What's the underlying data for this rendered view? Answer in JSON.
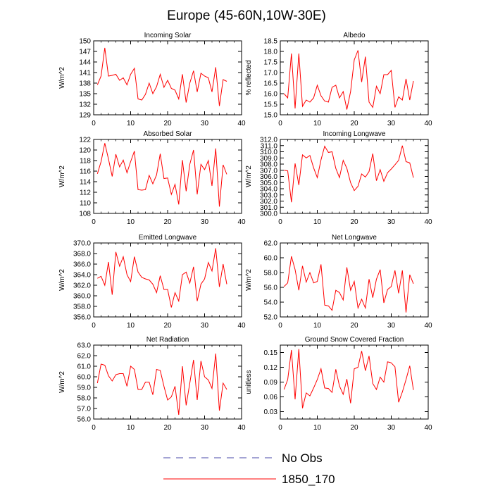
{
  "figure_title": "Europe (45-60N,10W-30E)",
  "legend": [
    {
      "label": "No Obs",
      "color": "#4a4aa8",
      "style": "dashed"
    },
    {
      "label": "1850_170",
      "color": "#ff0000",
      "style": "solid"
    }
  ],
  "chart_data": [
    {
      "type": "line",
      "title": "Incoming Solar",
      "ylabel": "W/m^2",
      "xlim": [
        0,
        40
      ],
      "xticks": [
        0,
        10,
        20,
        30,
        40
      ],
      "ylim": [
        129,
        150
      ],
      "yticks": [
        129,
        132,
        135,
        138,
        141,
        144,
        147,
        150
      ],
      "ytick_labels": [
        "129",
        "132",
        "135",
        "138",
        "141",
        "144",
        "147",
        "150"
      ],
      "series": [
        {
          "name": "1850_170",
          "color": "#ff0000",
          "x": [
            1,
            2,
            3,
            4,
            5,
            6,
            7,
            8,
            9,
            10,
            11,
            12,
            13,
            14,
            15,
            16,
            17,
            18,
            19,
            20,
            21,
            22,
            23,
            24,
            25,
            26,
            27,
            28,
            29,
            30,
            31,
            32,
            33,
            34,
            35,
            36
          ],
          "values": [
            137.5,
            140,
            148,
            140,
            140.2,
            140.5,
            138.8,
            139.5,
            137.5,
            140.5,
            142.2,
            133.5,
            133.2,
            134.8,
            138,
            135,
            137,
            140.5,
            136.8,
            138.8,
            136.5,
            136,
            133.5,
            140.5,
            132.5,
            138,
            141.5,
            135.5,
            140.8,
            140,
            139.5,
            135.5,
            142.5,
            131.5,
            139,
            138.5
          ]
        }
      ]
    },
    {
      "type": "line",
      "title": "Albedo",
      "ylabel": "% reflected",
      "xlim": [
        0,
        40
      ],
      "xticks": [
        0,
        10,
        20,
        30,
        40
      ],
      "ylim": [
        15.0,
        18.5
      ],
      "yticks": [
        15.0,
        15.5,
        16.0,
        16.5,
        17.0,
        17.5,
        18.0,
        18.5
      ],
      "ytick_labels": [
        "15.0",
        "15.5",
        "16.0",
        "16.5",
        "17.0",
        "17.5",
        "18.0",
        "18.5"
      ],
      "series": [
        {
          "name": "1850_170",
          "color": "#ff0000",
          "x": [
            1,
            2,
            3,
            4,
            5,
            6,
            7,
            8,
            9,
            10,
            11,
            12,
            13,
            14,
            15,
            16,
            17,
            18,
            19,
            20,
            21,
            22,
            23,
            24,
            25,
            26,
            27,
            28,
            29,
            30,
            31,
            32,
            33,
            34,
            35,
            36
          ],
          "values": [
            16,
            15.8,
            17.9,
            15.3,
            17.9,
            15.4,
            15.7,
            15.6,
            15.8,
            16.4,
            15.9,
            15.65,
            15.6,
            16.3,
            16.4,
            15.8,
            16.1,
            15.25,
            16.1,
            17.6,
            18.05,
            16.55,
            17.75,
            15.6,
            15.35,
            16.35,
            16.0,
            16.9,
            16.9,
            17.1,
            15.35,
            15.85,
            15.7,
            16.7,
            15.7,
            16.6
          ]
        }
      ]
    },
    {
      "type": "line",
      "title": "Absorbed Solar",
      "ylabel": "W/m^2",
      "xlim": [
        0,
        40
      ],
      "xticks": [
        0,
        10,
        20,
        30,
        40
      ],
      "ylim": [
        108,
        122
      ],
      "yticks": [
        108,
        110,
        112,
        114,
        116,
        118,
        120,
        122
      ],
      "ytick_labels": [
        "108",
        "110",
        "112",
        "114",
        "116",
        "118",
        "120",
        "122"
      ],
      "series": [
        {
          "name": "1850_170",
          "color": "#ff0000",
          "x": [
            1,
            2,
            3,
            4,
            5,
            6,
            7,
            8,
            9,
            10,
            11,
            12,
            13,
            14,
            15,
            16,
            17,
            18,
            19,
            20,
            21,
            22,
            23,
            24,
            25,
            26,
            27,
            28,
            29,
            30,
            31,
            32,
            33,
            34,
            35,
            36
          ],
          "values": [
            115.5,
            117.8,
            121.3,
            118.3,
            115,
            119.2,
            116.8,
            118.1,
            115.7,
            117.8,
            119.8,
            112.5,
            112.4,
            112.5,
            115.2,
            113.6,
            115.3,
            119.3,
            114.6,
            114.7,
            111.6,
            113.5,
            109.7,
            118.1,
            112.2,
            117.3,
            120,
            111.6,
            117.3,
            116.3,
            118,
            113.2,
            120.3,
            109.3,
            117.2,
            115.4
          ]
        }
      ]
    },
    {
      "type": "line",
      "title": "Incoming Longwave",
      "ylabel": "W/m^2",
      "xlim": [
        0,
        40
      ],
      "xticks": [
        0,
        10,
        20,
        30,
        40
      ],
      "ylim": [
        300.0,
        312.0
      ],
      "yticks": [
        300,
        301,
        302,
        303,
        304,
        305,
        306,
        307,
        308,
        309,
        310,
        311,
        312
      ],
      "ytick_labels": [
        "300.0",
        "301.0",
        "302.0",
        "303.0",
        "304.0",
        "305.0",
        "306.0",
        "307.0",
        "308.0",
        "309.0",
        "310.0",
        "311.0",
        "312.0"
      ],
      "series": [
        {
          "name": "1850_170",
          "color": "#ff0000",
          "x": [
            1,
            2,
            3,
            4,
            5,
            6,
            7,
            8,
            9,
            10,
            11,
            12,
            13,
            14,
            15,
            16,
            17,
            18,
            19,
            20,
            21,
            22,
            23,
            24,
            25,
            26,
            27,
            28,
            29,
            30,
            31,
            32,
            33,
            34,
            35,
            36
          ],
          "values": [
            307,
            306.9,
            301.8,
            308.1,
            304.6,
            309.5,
            309,
            309.4,
            307.4,
            305.8,
            308.7,
            310.9,
            309.9,
            310,
            307.3,
            305.8,
            308.6,
            307.3,
            305,
            303.7,
            304.4,
            306.4,
            305.9,
            306.8,
            309.7,
            305.3,
            307.1,
            305.2,
            306.6,
            307.2,
            307.9,
            308.6,
            311,
            308.4,
            308.2,
            305.8
          ]
        }
      ]
    },
    {
      "type": "line",
      "title": "Emitted Longwave",
      "ylabel": "W/m^2",
      "xlim": [
        0,
        40
      ],
      "xticks": [
        0,
        10,
        20,
        30,
        40
      ],
      "ylim": [
        356.0,
        370.0
      ],
      "yticks": [
        356,
        358,
        360,
        362,
        364,
        366,
        368,
        370
      ],
      "ytick_labels": [
        "356.0",
        "358.0",
        "360.0",
        "362.0",
        "364.0",
        "366.0",
        "368.0",
        "370.0"
      ],
      "series": [
        {
          "name": "1850_170",
          "color": "#ff0000",
          "x": [
            1,
            2,
            3,
            4,
            5,
            6,
            7,
            8,
            9,
            10,
            11,
            12,
            13,
            14,
            15,
            16,
            17,
            18,
            19,
            20,
            21,
            22,
            23,
            24,
            25,
            26,
            27,
            28,
            29,
            30,
            31,
            32,
            33,
            34,
            35,
            36
          ],
          "values": [
            363.3,
            363.7,
            362,
            366.4,
            360.2,
            368.3,
            365.6,
            367.4,
            364,
            362.7,
            367.4,
            364.5,
            363.5,
            363.2,
            363,
            362.2,
            360.6,
            363.8,
            361.2,
            361.2,
            357.8,
            360.6,
            359,
            364,
            364.5,
            362.4,
            365.5,
            359,
            362.2,
            363.2,
            366.3,
            364.7,
            369,
            361.7,
            366,
            362.2
          ]
        }
      ]
    },
    {
      "type": "line",
      "title": "Net Longwave",
      "ylabel": "W/m^2",
      "xlim": [
        0,
        40
      ],
      "xticks": [
        0,
        10,
        20,
        30,
        40
      ],
      "ylim": [
        52.0,
        62.0
      ],
      "yticks": [
        52,
        54,
        56,
        58,
        60,
        62
      ],
      "ytick_labels": [
        "52.0",
        "54.0",
        "56.0",
        "58.0",
        "60.0",
        "62.0"
      ],
      "series": [
        {
          "name": "1850_170",
          "color": "#ff0000",
          "x": [
            1,
            2,
            3,
            4,
            5,
            6,
            7,
            8,
            9,
            10,
            11,
            12,
            13,
            14,
            15,
            16,
            17,
            18,
            19,
            20,
            21,
            22,
            23,
            24,
            25,
            26,
            27,
            28,
            29,
            30,
            31,
            32,
            33,
            34,
            35,
            36
          ],
          "values": [
            56.1,
            56.6,
            60.2,
            58.4,
            55.6,
            58.9,
            56.7,
            58,
            56.6,
            56.8,
            59.1,
            53.6,
            53.5,
            52.9,
            55.6,
            55.3,
            54.3,
            58.7,
            55.6,
            56.8,
            53.2,
            54.4,
            53.2,
            57.1,
            54.6,
            57.1,
            58.4,
            53.9,
            55.7,
            56.1,
            58.3,
            55.2,
            58.3,
            52.6,
            57.7,
            56.5
          ]
        }
      ]
    },
    {
      "type": "line",
      "title": "Net Radiation",
      "ylabel": "W/m^2",
      "xlim": [
        0,
        40
      ],
      "xticks": [
        0,
        10,
        20,
        30,
        40
      ],
      "ylim": [
        56.0,
        63.0
      ],
      "yticks": [
        56,
        57,
        58,
        59,
        60,
        61,
        62,
        63
      ],
      "ytick_labels": [
        "56.0",
        "57.0",
        "58.0",
        "59.0",
        "60.0",
        "61.0",
        "62.0",
        "63.0"
      ],
      "series": [
        {
          "name": "1850_170",
          "color": "#ff0000",
          "x": [
            1,
            2,
            3,
            4,
            5,
            6,
            7,
            8,
            9,
            10,
            11,
            12,
            13,
            14,
            15,
            16,
            17,
            18,
            19,
            20,
            21,
            22,
            23,
            24,
            25,
            26,
            27,
            28,
            29,
            30,
            31,
            32,
            33,
            34,
            35,
            36
          ],
          "values": [
            59.4,
            61.2,
            61.1,
            60.1,
            59.6,
            60.2,
            60.3,
            60.3,
            59.1,
            61.0,
            60.7,
            58.8,
            58.8,
            59.5,
            59.5,
            58.3,
            60.7,
            60.6,
            59.1,
            57.8,
            58.1,
            59.1,
            56.4,
            61.0,
            57.3,
            59.4,
            61.6,
            57.8,
            61.5,
            60.0,
            59.7,
            58.9,
            62.2,
            56.8,
            59.4,
            58.8
          ]
        }
      ]
    },
    {
      "type": "line",
      "title": "Ground Snow Covered Fraction",
      "ylabel": "unitless",
      "xlim": [
        0,
        40
      ],
      "xticks": [
        0,
        10,
        20,
        30,
        40
      ],
      "ylim": [
        0.015,
        0.165
      ],
      "yticks": [
        0.03,
        0.06,
        0.09,
        0.12,
        0.15
      ],
      "ytick_labels": [
        "0.03",
        "0.06",
        "0.09",
        "0.12",
        "0.15"
      ],
      "series": [
        {
          "name": "1850_170",
          "color": "#ff0000",
          "x": [
            1,
            2,
            3,
            4,
            5,
            6,
            7,
            8,
            9,
            10,
            11,
            12,
            13,
            14,
            15,
            16,
            17,
            18,
            19,
            20,
            21,
            22,
            23,
            24,
            25,
            26,
            27,
            28,
            29,
            30,
            31,
            32,
            33,
            34,
            35,
            36
          ],
          "values": [
            0.075,
            0.095,
            0.155,
            0.055,
            0.157,
            0.037,
            0.068,
            0.062,
            0.078,
            0.095,
            0.117,
            0.078,
            0.077,
            0.069,
            0.116,
            0.082,
            0.065,
            0.096,
            0.047,
            0.117,
            0.12,
            0.153,
            0.113,
            0.143,
            0.087,
            0.075,
            0.1,
            0.09,
            0.131,
            0.129,
            0.121,
            0.049,
            0.07,
            0.095,
            0.123,
            0.074
          ]
        }
      ]
    }
  ]
}
